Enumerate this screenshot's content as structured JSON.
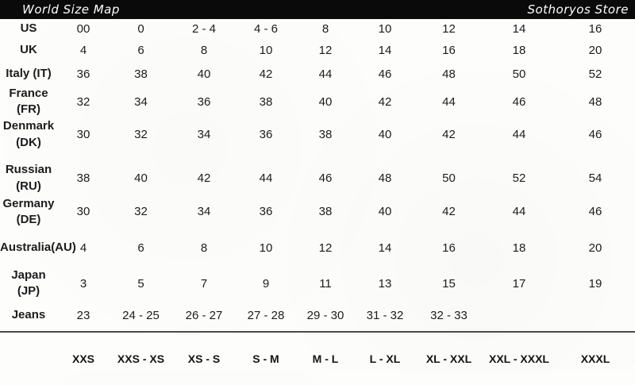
{
  "header": {
    "left": "World Size Map",
    "right": "Sothoryos Store"
  },
  "colors": {
    "header_bg": "#0a0a0a",
    "header_text": "#ffffff",
    "divider_line": "#4a4a4a",
    "body_text": "#1c1c1c"
  },
  "table": {
    "rows": [
      {
        "label": "US",
        "values": [
          "00",
          "0",
          "2 - 4",
          "4 - 6",
          "8",
          "10",
          "12",
          "14",
          "16"
        ]
      },
      {
        "label": "UK",
        "values": [
          "4",
          "6",
          "8",
          "10",
          "12",
          "14",
          "16",
          "18",
          "20"
        ]
      },
      {
        "label": "Italy (IT)",
        "values": [
          "36",
          "38",
          "40",
          "42",
          "44",
          "46",
          "48",
          "50",
          "52"
        ]
      },
      {
        "label": "France (FR)",
        "values": [
          "32",
          "34",
          "36",
          "38",
          "40",
          "42",
          "44",
          "46",
          "48"
        ]
      },
      {
        "label": "Denmark\n(DK)",
        "values": [
          "30",
          "32",
          "34",
          "36",
          "38",
          "40",
          "42",
          "44",
          "46"
        ]
      },
      {
        "label": "Russian (RU)",
        "values": [
          "38",
          "40",
          "42",
          "44",
          "46",
          "48",
          "50",
          "52",
          "54"
        ]
      },
      {
        "label": "Germany\n(DE)",
        "values": [
          "30",
          "32",
          "34",
          "36",
          "38",
          "40",
          "42",
          "44",
          "46"
        ]
      },
      {
        "label": "Australia(AU)",
        "values": [
          "4",
          "6",
          "8",
          "10",
          "12",
          "14",
          "16",
          "18",
          "20"
        ]
      },
      {
        "label": "Japan (JP)",
        "values": [
          "3",
          "5",
          "7",
          "9",
          "11",
          "13",
          "15",
          "17",
          "19"
        ]
      },
      {
        "label": "Jeans",
        "values": [
          "23",
          "24 - 25",
          "26 - 27",
          "27 - 28",
          "29 - 30",
          "31 - 32",
          "32 - 33",
          "",
          ""
        ]
      }
    ],
    "footer": [
      "XXS",
      "XXS - XS",
      "XS - S",
      "S - M",
      "M - L",
      "L - XL",
      "XL - XXL",
      "XXL - XXXL",
      "XXXL"
    ]
  }
}
